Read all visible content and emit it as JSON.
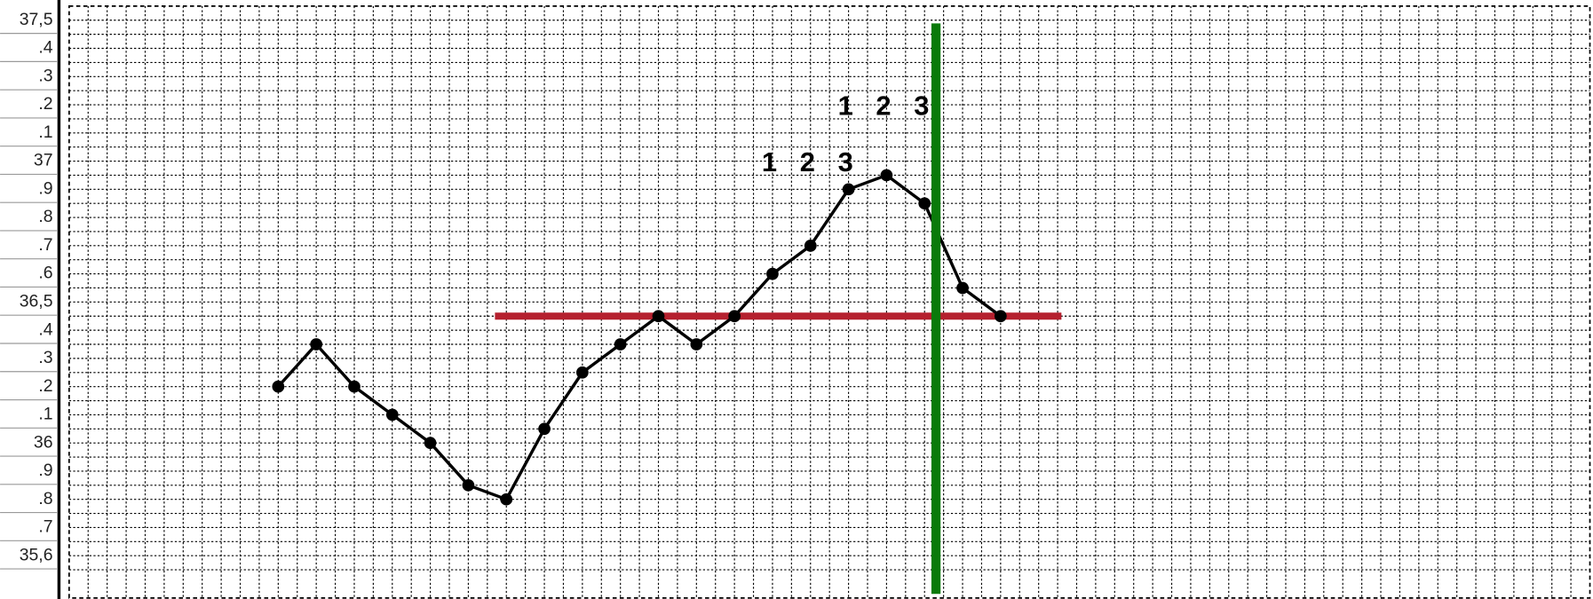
{
  "chart_data": {
    "type": "line",
    "categories": [
      null,
      null,
      null,
      null,
      null,
      null,
      null,
      null,
      null,
      null,
      null,
      null,
      null,
      null,
      null,
      null,
      null,
      null,
      null,
      null,
      null,
      null,
      null,
      null,
      null,
      null,
      null,
      null,
      null,
      null,
      null,
      null,
      null,
      null,
      null,
      null,
      null,
      null,
      null,
      null
    ],
    "series": [
      {
        "color": "#000000",
        "values": [
          null,
          null,
          null,
          null,
          null,
          36.2,
          36.35,
          36.2,
          36.1,
          36.0,
          35.85,
          35.8,
          36.05,
          36.25,
          36.35,
          36.45,
          36.35,
          36.45,
          36.6,
          36.7,
          36.9,
          36.95,
          36.85,
          36.55,
          36.45,
          null,
          null,
          null,
          null,
          null,
          null,
          null,
          null,
          null,
          null,
          null,
          null,
          null,
          null,
          null
        ]
      }
    ],
    "ylim": [
      35.45,
      37.55
    ],
    "yticks": [
      {
        "value": 37.5,
        "label": "37,5"
      },
      {
        "value": 37.4,
        "label": ".4"
      },
      {
        "value": 37.3,
        "label": ".3"
      },
      {
        "value": 37.2,
        "label": ".2"
      },
      {
        "value": 37.1,
        "label": ".1"
      },
      37,
      {
        "value": 36.9,
        "label": ".9"
      },
      {
        "value": 36.8,
        "label": ".8"
      },
      {
        "value": 36.7,
        "label": ".7"
      },
      {
        "value": 36.6,
        "label": ".6"
      },
      {
        "value": 36.5,
        "label": "36,5"
      },
      {
        "value": 36.4,
        "label": ".4"
      },
      {
        "value": 36.3,
        "label": ".3"
      },
      {
        "value": 36.2,
        "label": ".2"
      },
      {
        "value": 36.1,
        "label": ".1"
      },
      36,
      {
        "value": 35.9,
        "label": ".9"
      },
      {
        "value": 35.8,
        "label": ".8"
      },
      {
        "value": 35.7,
        "label": ".7"
      },
      {
        "value": 35.6,
        "label": "35,6"
      }
    ],
    "grid": true,
    "hline": {
      "y": 36.45,
      "x": [
        10.7,
        25.6
      ],
      "color": "#b5202e"
    },
    "vline": {
      "x": 22.3,
      "color": "#0a7a0a"
    },
    "annotations": [
      {
        "text": "1",
        "x": 18,
        "y": 36.99
      },
      {
        "text": "2",
        "x": 19,
        "y": 36.99
      },
      {
        "text": "3",
        "x": 20,
        "y": 36.99
      },
      {
        "text": "1",
        "x": 20,
        "y": 37.19
      },
      {
        "text": "2",
        "x": 21,
        "y": 37.19
      },
      {
        "text": "3",
        "x": 22,
        "y": 37.19
      }
    ]
  }
}
